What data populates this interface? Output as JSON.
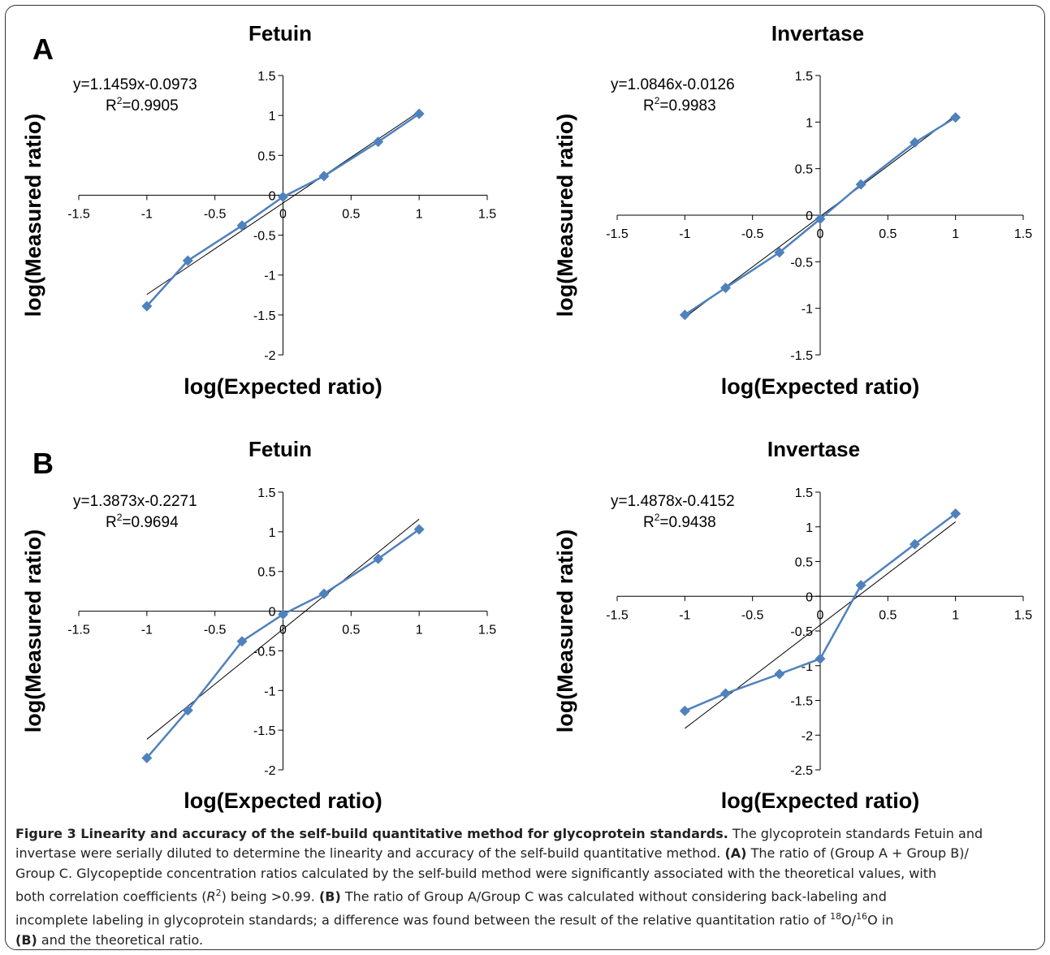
{
  "chart_data": [
    {
      "type": "line",
      "panel": "A",
      "title": "Fetuin",
      "xlabel": "log(Expected ratio)",
      "ylabel": "log(Measured ratio)",
      "xlim": [
        -1.5,
        1.5
      ],
      "ylim": [
        -2,
        1.5
      ],
      "xticks": [
        -1.5,
        -1,
        -0.5,
        0,
        0.5,
        1,
        1.5
      ],
      "yticks": [
        -2,
        -1.5,
        -1,
        -0.5,
        0,
        0.5,
        1,
        1.5
      ],
      "equation": "y=1.1459x-0.0973",
      "r2_label": "R",
      "r2_sup": "2",
      "r2_value": "=0.9905",
      "fit": {
        "slope": 1.1459,
        "intercept": -0.0973
      },
      "series": [
        {
          "x": [
            -1,
            -0.699,
            -0.301,
            0,
            0.301,
            0.699,
            1
          ],
          "y": [
            -1.39,
            -0.82,
            -0.38,
            -0.02,
            0.24,
            0.67,
            1.02
          ]
        }
      ]
    },
    {
      "type": "line",
      "panel": "",
      "title": "Invertase",
      "xlabel": "log(Expected ratio)",
      "ylabel": "log(Measured ratio)",
      "xlim": [
        -1.5,
        1.5
      ],
      "ylim": [
        -1.5,
        1.5
      ],
      "xticks": [
        -1.5,
        -1,
        -0.5,
        0,
        0.5,
        1,
        1.5
      ],
      "yticks": [
        -1.5,
        -1,
        -0.5,
        0,
        0.5,
        1,
        1.5
      ],
      "equation": "y=1.0846x-0.0126",
      "r2_label": "R",
      "r2_sup": "2",
      "r2_value": "=0.9983",
      "fit": {
        "slope": 1.0846,
        "intercept": -0.0126
      },
      "series": [
        {
          "x": [
            -1,
            -0.699,
            -0.301,
            0,
            0.301,
            0.699,
            1
          ],
          "y": [
            -1.07,
            -0.78,
            -0.4,
            -0.04,
            0.33,
            0.78,
            1.05
          ]
        }
      ]
    },
    {
      "type": "line",
      "panel": "B",
      "title": "Fetuin",
      "xlabel": "log(Expected ratio)",
      "ylabel": "log(Measured ratio)",
      "xlim": [
        -1.5,
        1.5
      ],
      "ylim": [
        -2,
        1.5
      ],
      "xticks": [
        -1.5,
        -1,
        -0.5,
        0,
        0.5,
        1,
        1.5
      ],
      "yticks": [
        -2,
        -1.5,
        -1,
        -0.5,
        0,
        0.5,
        1,
        1.5
      ],
      "equation": "y=1.3873x-0.2271",
      "r2_label": "R",
      "r2_sup": "2",
      "r2_value": "=0.9694",
      "fit": {
        "slope": 1.3873,
        "intercept": -0.2271
      },
      "series": [
        {
          "x": [
            -1,
            -0.699,
            -0.301,
            0,
            0.301,
            0.699,
            1
          ],
          "y": [
            -1.85,
            -1.25,
            -0.38,
            -0.04,
            0.22,
            0.66,
            1.03
          ]
        }
      ]
    },
    {
      "type": "line",
      "panel": "",
      "title": "Invertase",
      "xlabel": "log(Expected ratio)",
      "ylabel": "log(Measured ratio)",
      "xlim": [
        -1.5,
        1.5
      ],
      "ylim": [
        -2.5,
        1.5
      ],
      "xticks": [
        -1.5,
        -1,
        -0.5,
        0,
        0.5,
        1,
        1.5
      ],
      "yticks": [
        -2.5,
        -2,
        -1.5,
        -1,
        -0.5,
        0,
        0.5,
        1,
        1.5
      ],
      "equation": "y=1.4878x-0.4152",
      "r2_label": "R",
      "r2_sup": "2",
      "r2_value": "=0.9438",
      "fit": {
        "slope": 1.4878,
        "intercept": -0.4152
      },
      "series": [
        {
          "x": [
            -1,
            -0.699,
            -0.301,
            0,
            0.301,
            0.699,
            1
          ],
          "y": [
            -1.65,
            -1.4,
            -1.12,
            -0.9,
            0.16,
            0.75,
            1.19
          ]
        }
      ]
    }
  ],
  "style": {
    "series_color": "#4f81bd",
    "fit_color": "#000000",
    "frame_color": "#333333"
  },
  "caption": {
    "heading": "Figure 3 Linearity and accuracy of the self-build quantitative method for glycoprotein standards.",
    "line1": " The glycoprotein standards Fetuin and",
    "line2": "invertase were serially diluted to determine the linearity and accuracy of the self-build quantitative method. ",
    "a_label": "(A)",
    "line2b": " The ratio of (Group A + Group B)/",
    "line3": "Group C. Glycopeptide concentration ratios calculated by the self-build method were significantly associated with the theoretical values, with",
    "line4a": "both correlation coefficients (",
    "r_italic": "R",
    "r_sup": "2",
    "line4b": ") being >0.99. ",
    "b_label": "(B)",
    "line4c": " The ratio of Group A/Group C was calculated without considering back-labeling and",
    "line5a": "incomplete labeling in glycoprotein standards; a difference was found between the result of the relative quantitation ratio of ",
    "iso1_sup": "18",
    "iso1": "O/",
    "iso2_sup": "16",
    "iso2": "O in",
    "b_label2": "(B)",
    "line6": " and the theoretical ratio."
  }
}
